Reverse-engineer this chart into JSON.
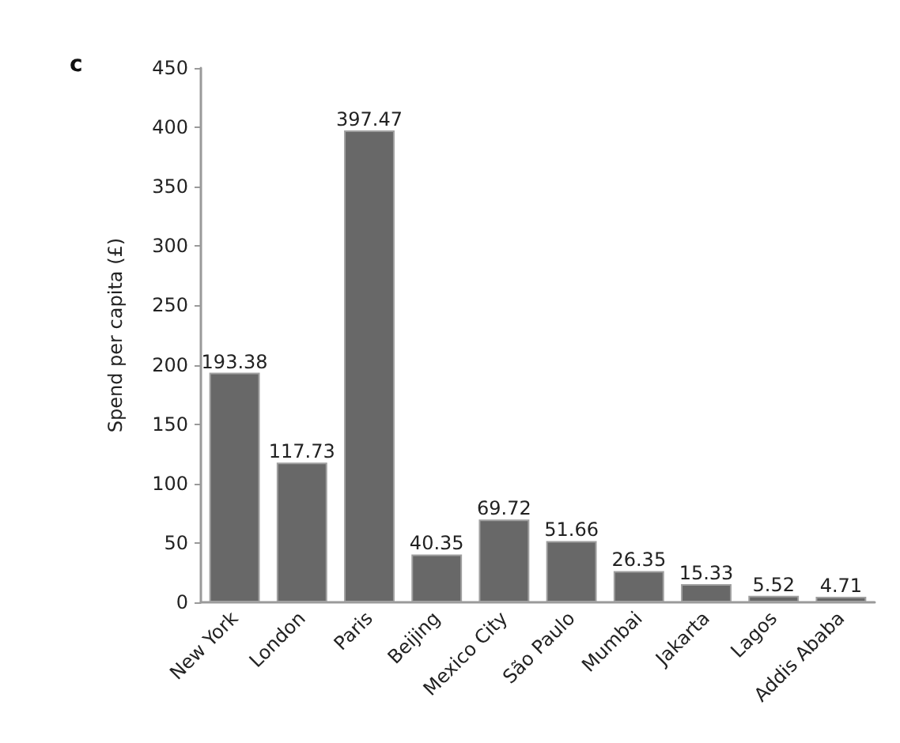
{
  "chart_data": {
    "type": "bar",
    "categories": [
      "New York",
      "London",
      "Paris",
      "Beijing",
      "Mexico City",
      "São Paulo",
      "Mumbai",
      "Jakarta",
      "Lagos",
      "Addis Ababa"
    ],
    "values": [
      193.38,
      117.73,
      397.47,
      40.35,
      69.72,
      51.66,
      26.35,
      15.33,
      5.52,
      4.71
    ],
    "color": "#686868",
    "ylabel": "Spend per capita (£)",
    "ylim": [
      0,
      450
    ],
    "yticks": [
      0,
      50,
      100,
      150,
      200,
      250,
      300,
      350,
      400,
      450
    ],
    "data_labels": true,
    "grid": false,
    "annotations": [
      "c"
    ]
  }
}
